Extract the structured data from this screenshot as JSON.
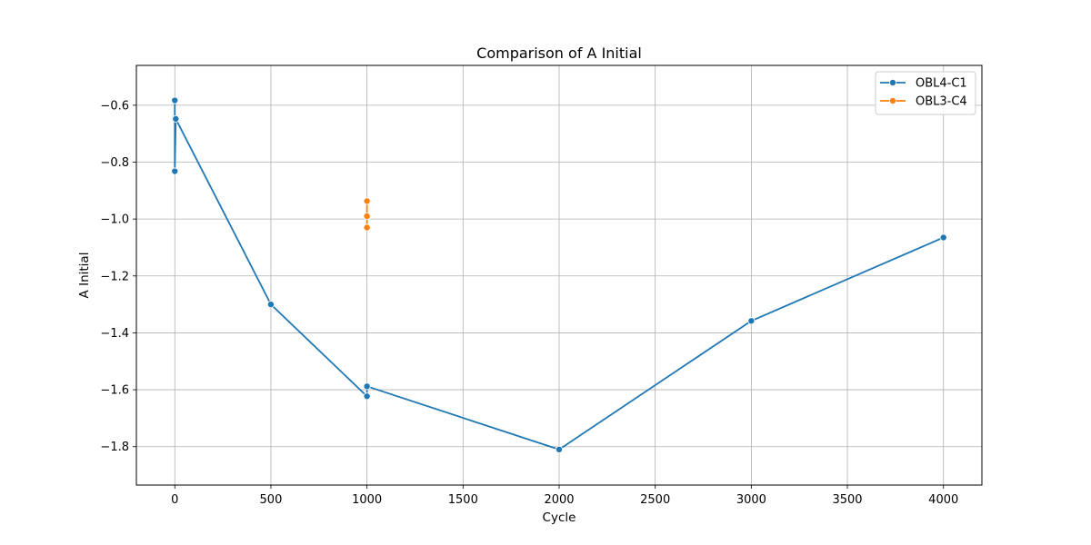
{
  "chart_data": {
    "type": "line",
    "title": "Comparison of A Initial",
    "xlabel": "Cycle",
    "ylabel": "A Initial",
    "xlim": [
      -200,
      4200
    ],
    "ylim": [
      -1.935,
      -0.46
    ],
    "xticks": [
      0,
      500,
      1000,
      1500,
      2000,
      2500,
      3000,
      3500,
      4000
    ],
    "yticks": [
      -0.6,
      -0.8,
      -1.0,
      -1.2,
      -1.4,
      -1.6,
      -1.8
    ],
    "xtick_labels": [
      "0",
      "500",
      "1000",
      "1500",
      "2000",
      "2500",
      "3000",
      "3500",
      "4000"
    ],
    "ytick_labels": [
      "−0.6",
      "−0.8",
      "−1.0",
      "−1.2",
      "−1.4",
      "−1.6",
      "−1.8"
    ],
    "grid": true,
    "legend_position": "top-right",
    "series": [
      {
        "name": "OBL4-C1",
        "color": "#1f77b4",
        "points": [
          {
            "x": 0,
            "y": -0.583
          },
          {
            "x": 0,
            "y": -0.832
          },
          {
            "x": 5,
            "y": -0.648
          },
          {
            "x": 500,
            "y": -1.3
          },
          {
            "x": 1000,
            "y": -1.623
          },
          {
            "x": 1000,
            "y": -1.588
          },
          {
            "x": 2000,
            "y": -1.81
          },
          {
            "x": 3000,
            "y": -1.358
          },
          {
            "x": 4000,
            "y": -1.065
          }
        ]
      },
      {
        "name": "OBL3-C4",
        "color": "#ff7f0e",
        "points": [
          {
            "x": 1000,
            "y": -0.937
          },
          {
            "x": 1000,
            "y": -0.99
          },
          {
            "x": 1000,
            "y": -1.03
          }
        ]
      }
    ]
  }
}
